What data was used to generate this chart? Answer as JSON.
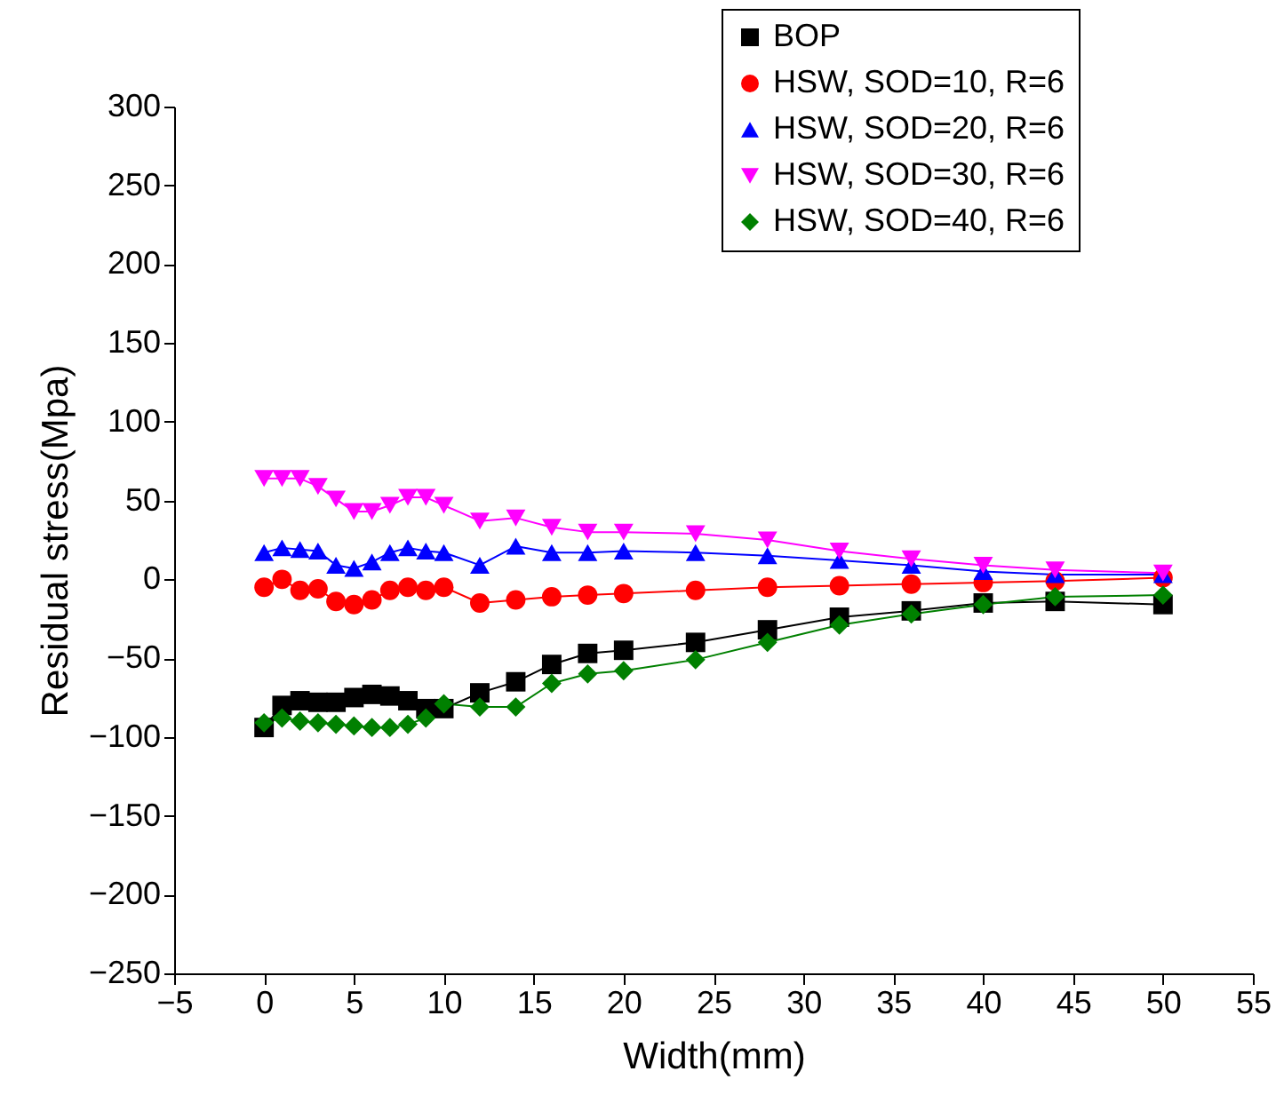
{
  "chart_data": {
    "type": "line",
    "xlabel": "Width(mm)",
    "ylabel": "Residual stress(Mpa)",
    "x": [
      0,
      1,
      2,
      3,
      4,
      5,
      6,
      7,
      8,
      9,
      10,
      12,
      14,
      16,
      18,
      20,
      24,
      28,
      32,
      36,
      40,
      44,
      50
    ],
    "xlim": [
      -5,
      55
    ],
    "xticks": [
      -5,
      0,
      5,
      10,
      15,
      20,
      25,
      30,
      35,
      40,
      45,
      50,
      55
    ],
    "ylim": [
      -250,
      300
    ],
    "yticks": [
      -250,
      -200,
      -150,
      -100,
      -50,
      0,
      50,
      100,
      150,
      200,
      250,
      300
    ],
    "grid": false,
    "legend": "top right",
    "line_style": "solid",
    "series": [
      {
        "name": "BOP",
        "color": "#000000",
        "marker": "square",
        "values": [
          -94,
          -80,
          -77,
          -78,
          -78,
          -75,
          -73,
          -74,
          -77,
          -82,
          -82,
          -72,
          -65,
          -54,
          -47,
          -45,
          -40,
          -32,
          -24,
          -20,
          -15,
          -14,
          -16
        ]
      },
      {
        "name": "HSW, SOD=10, R=6",
        "color": "#ff0000",
        "marker": "circle",
        "values": [
          -5,
          0,
          -7,
          -6,
          -14,
          -16,
          -13,
          -7,
          -5,
          -7,
          -5,
          -15,
          -13,
          -11,
          -10,
          -9,
          -7,
          -5,
          -4,
          -3,
          -2,
          -1,
          1
        ]
      },
      {
        "name": "HSW, SOD=20, R=6",
        "color": "#0000ff",
        "marker": "triangle",
        "values": [
          17,
          20,
          19,
          18,
          9,
          7,
          11,
          17,
          20,
          18,
          17,
          9,
          21,
          17,
          17,
          18,
          17,
          15,
          12,
          9,
          5,
          3,
          3
        ]
      },
      {
        "name": "HSW, SOD=30, R=6",
        "color": "#ff00ff",
        "marker": "triangle-down",
        "values": [
          64,
          64,
          64,
          59,
          51,
          43,
          43,
          47,
          52,
          52,
          47,
          37,
          39,
          33,
          30,
          30,
          29,
          25,
          18,
          13,
          9,
          6,
          4
        ]
      },
      {
        "name": "HSW, SOD=40, R=6",
        "color": "#008000",
        "marker": "diamond",
        "values": [
          -91,
          -88,
          -90,
          -91,
          -92,
          -93,
          -94,
          -94,
          -92,
          -88,
          -79,
          -81,
          -81,
          -66,
          -60,
          -58,
          -51,
          -40,
          -29,
          -22,
          -16,
          -11,
          -10
        ]
      }
    ]
  }
}
